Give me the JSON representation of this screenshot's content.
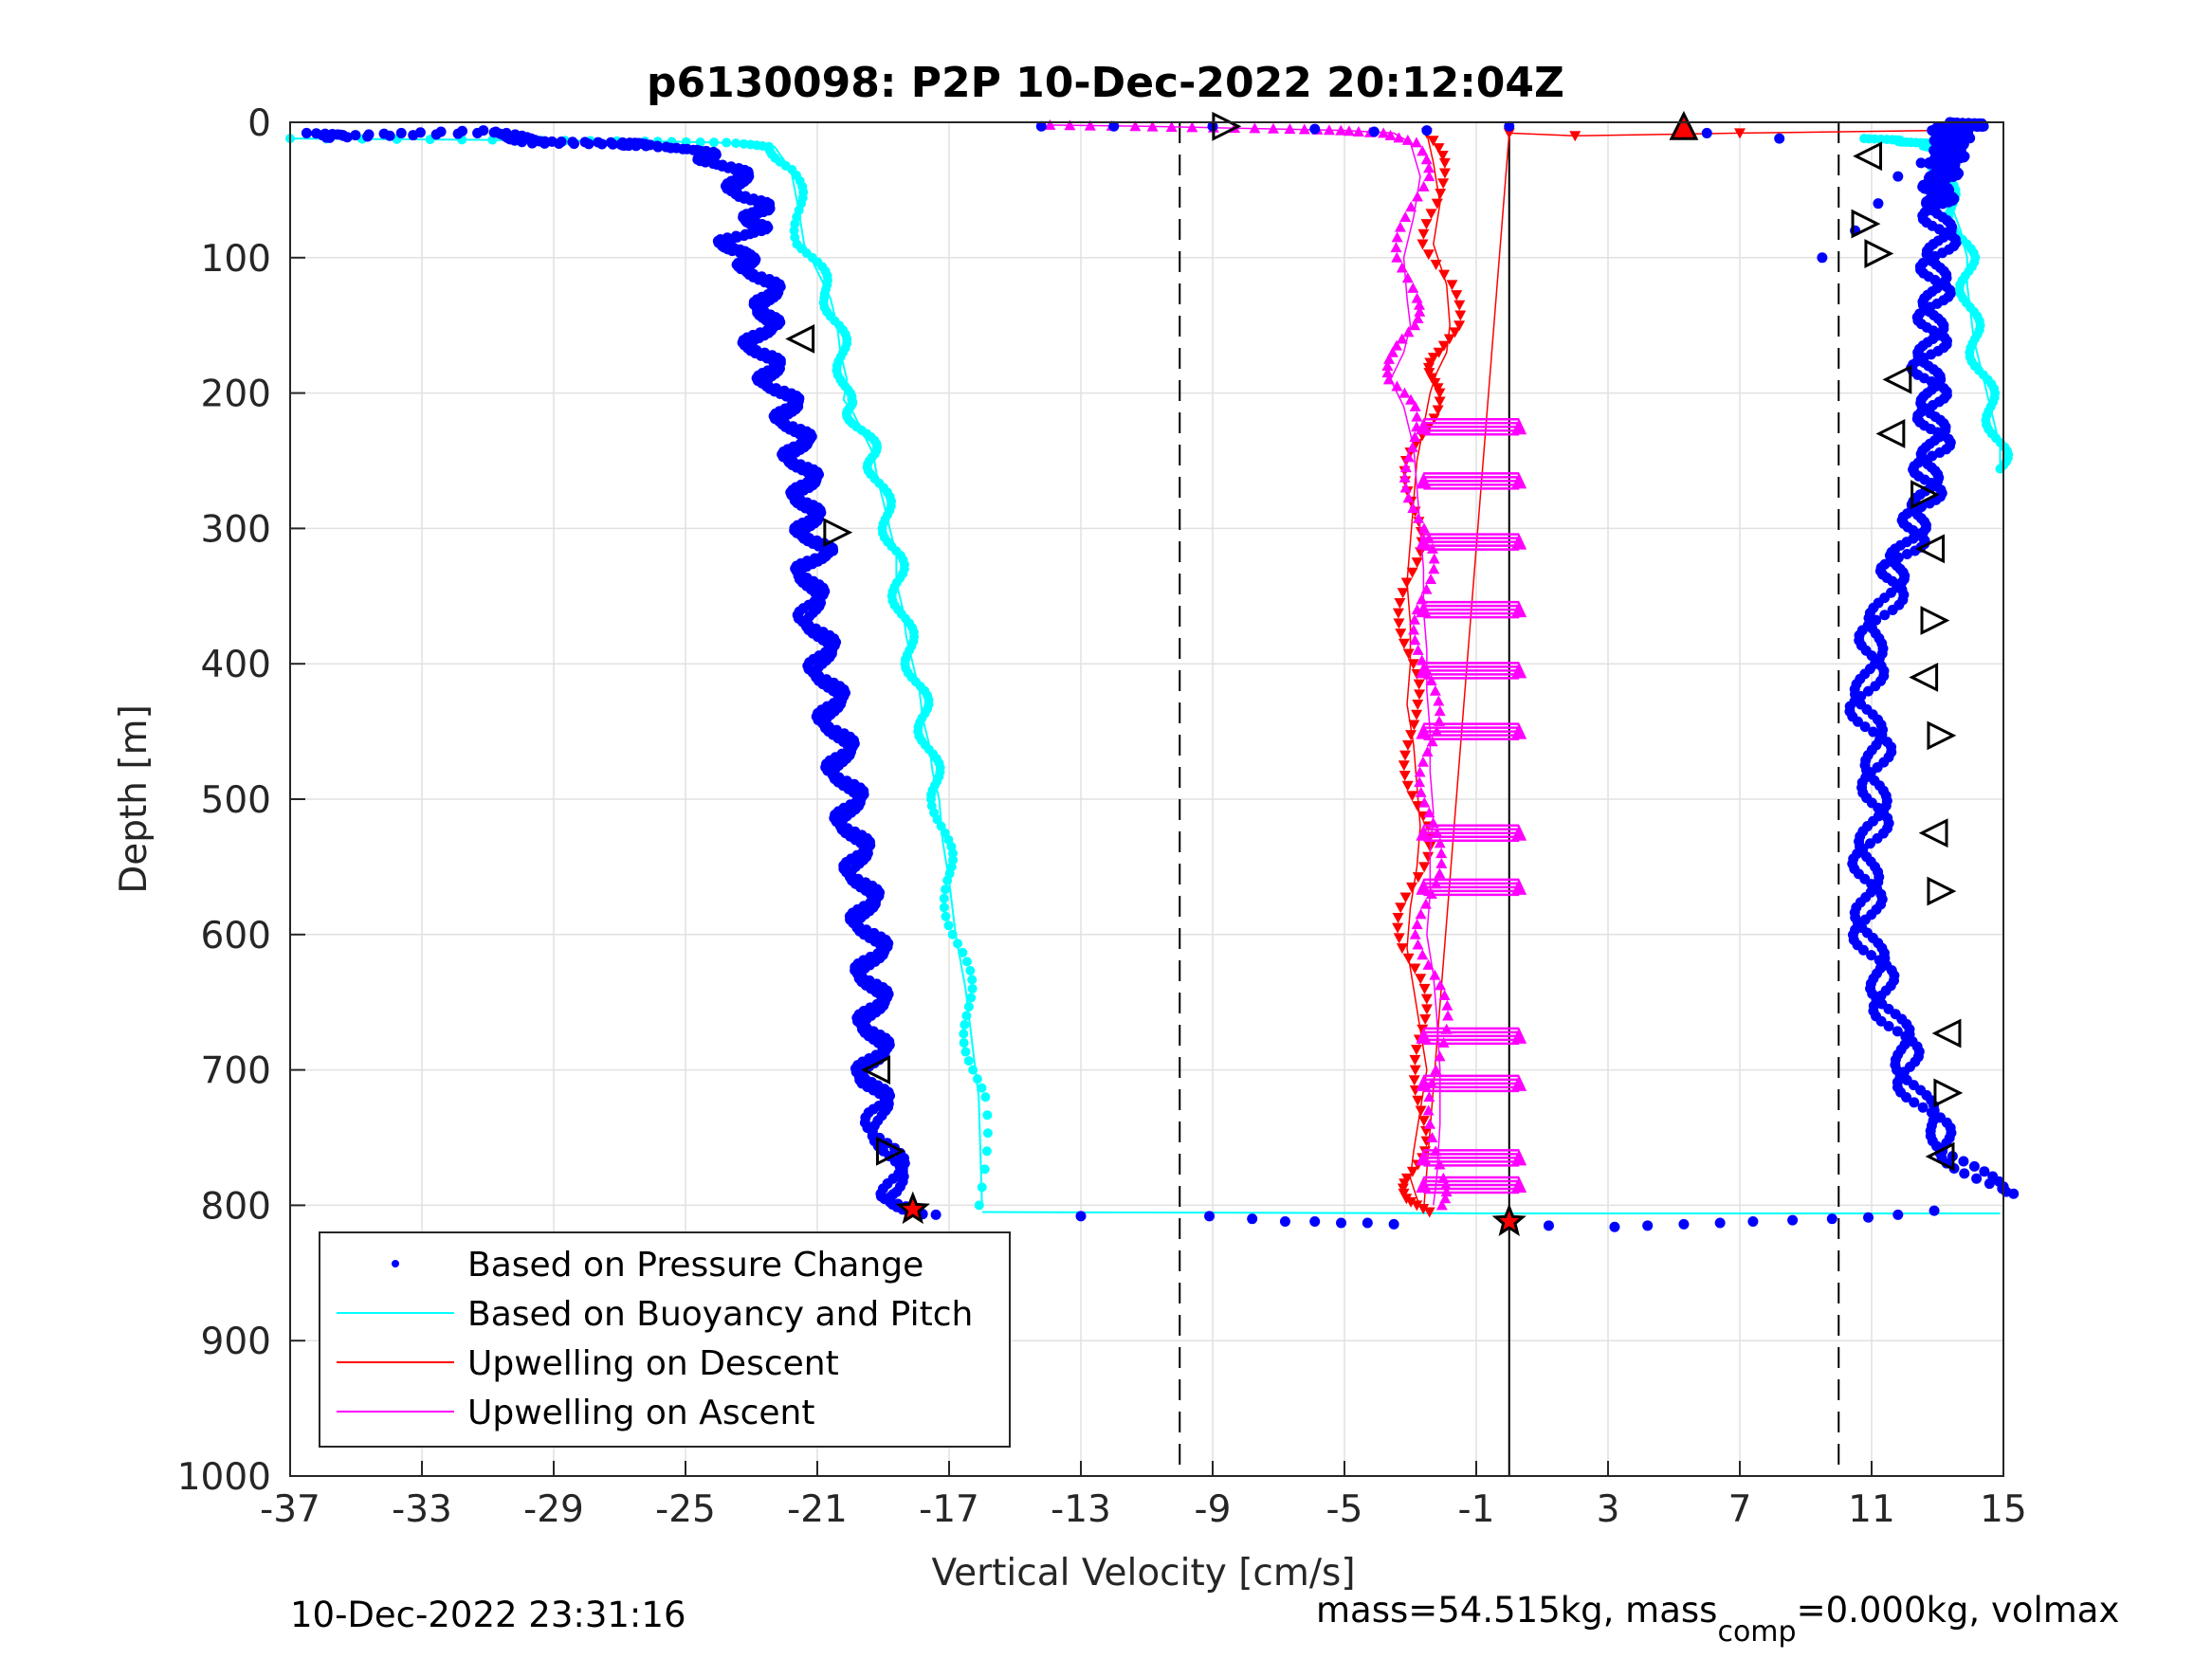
{
  "chart_data": {
    "type": "scatter",
    "title": "p6130098: P2P 10-Dec-2022 20:12:04Z",
    "xlabel": "Vertical Velocity [cm/s]",
    "ylabel": "Depth [m]",
    "xlim": [
      -37,
      15
    ],
    "ylim": [
      0,
      1000
    ],
    "y_reversed": true,
    "grid": true,
    "x_ticks": [
      "-37",
      "-33",
      "-29",
      "-25",
      "-21",
      "-17",
      "-13",
      "-9",
      "-5",
      "-1",
      "3",
      "7",
      "11",
      "15"
    ],
    "y_ticks": [
      "0",
      "100",
      "200",
      "300",
      "400",
      "500",
      "600",
      "700",
      "800",
      "900",
      "1000"
    ],
    "legend_position": "bottom-left",
    "reference_lines": [
      {
        "style": "dashed",
        "x": -10
      },
      {
        "style": "solid",
        "x": 0
      },
      {
        "style": "dashed",
        "x": 10
      }
    ],
    "series": [
      {
        "name": "Based on Pressure Change",
        "color": "#0000ff",
        "marker": "dot",
        "descent": {
          "x": [
            -36.5,
            -35.3,
            -31.3,
            -29.2,
            -27.2,
            -25.9,
            -24.5,
            -23.8,
            -23.4,
            -23.1,
            -22.7,
            -22.9,
            -23.5,
            -23.6,
            -22.9,
            -22.6,
            -22.4,
            -22.7,
            -22.8,
            -22.5,
            -22.2,
            -21.9,
            -21.7,
            -21.6,
            -21.5,
            -21.3,
            -21.4,
            -21.2,
            -21.0,
            -21.2,
            -21.3,
            -21.0,
            -20.9,
            -20.7,
            -20.6,
            -20.4,
            -20.3,
            -20.1,
            -20.0,
            -19.9,
            -19.7,
            -19.6,
            -19.5,
            -19.3,
            -19.4,
            -19.3,
            -19.3,
            -19.3,
            -19.4,
            -19.1,
            -18.9,
            -18.6,
            -18.3
          ],
          "y": [
            8,
            10,
            6,
            14,
            15,
            16,
            22,
            30,
            40,
            55,
            65,
            75,
            85,
            95,
            105,
            120,
            135,
            150,
            165,
            180,
            195,
            210,
            225,
            240,
            255,
            270,
            285,
            300,
            315,
            330,
            350,
            370,
            390,
            410,
            430,
            450,
            470,
            490,
            510,
            530,
            550,
            570,
            590,
            610,
            630,
            650,
            670,
            690,
            710,
            730,
            760,
            790,
            805
          ]
        },
        "bottom": {
          "x": [
            -17.4,
            -13.0,
            -9.1,
            -7.8,
            -6.8,
            -5.9,
            -5.1,
            -4.3,
            -3.5,
            1.2,
            3.2,
            4.2,
            5.3,
            6.4,
            7.4,
            8.6,
            9.8,
            10.9,
            11.8,
            12.9
          ],
          "y": [
            807,
            808,
            808,
            810,
            812,
            812,
            813,
            813,
            814,
            815,
            816,
            815,
            814,
            813,
            812,
            811,
            810,
            809,
            807,
            804
          ]
        },
        "ascent": {
          "x": [
            14.9,
            13.4,
            12.6,
            12.1,
            11.8,
            11.3,
            11.0,
            10.8,
            10.9,
            11.0,
            11.2,
            11.1,
            10.8,
            10.9,
            11.2,
            11.6,
            11.9,
            12.3,
            12.6,
            12.7,
            12.9,
            12.9,
            12.8,
            12.7,
            12.8,
            12.9,
            12.9,
            13.0,
            13.1,
            13.0,
            13.0,
            13.1,
            13.2,
            13.3,
            13.4,
            13.3,
            13.4,
            13.5,
            13.5,
            13.4,
            13.3,
            13.5,
            13.8,
            14.0,
            13.7,
            13.3,
            12.5,
            11.8,
            11.2,
            10.5,
            9.5,
            8.2,
            6.0,
            0.0,
            -2.5,
            -4.1,
            -5.9,
            -9.0,
            -12.0,
            -14.2
          ],
          "y": [
            790,
            760,
            730,
            700,
            670,
            640,
            610,
            580,
            550,
            520,
            490,
            460,
            430,
            400,
            370,
            340,
            320,
            300,
            280,
            260,
            240,
            220,
            200,
            180,
            160,
            140,
            120,
            100,
            80,
            60,
            50,
            40,
            30,
            25,
            20,
            15,
            12,
            10,
            8,
            6,
            4,
            3,
            2,
            1,
            0,
            20,
            30,
            40,
            60,
            80,
            100,
            12,
            8,
            3,
            6,
            7,
            5,
            3,
            3,
            3
          ]
        }
      },
      {
        "name": "Based on Buoyancy and Pitch",
        "color": "#00ffff",
        "marker": "line-circle",
        "descent": {
          "x": [
            -37,
            -31,
            -26,
            -24,
            -22.3,
            -21.8,
            -21.6,
            -21.4,
            -21.0,
            -20.6,
            -20.4,
            -20.3,
            -20.1,
            -20.2,
            -19.9,
            -19.6,
            -19.3,
            -19.2,
            -19.0,
            -18.8,
            -18.6,
            -18.6,
            -18.4,
            -18.3,
            -18.1,
            -17.9,
            -17.8,
            -17.6,
            -17.5,
            -17.3,
            -17.2,
            -17.0,
            -16.8,
            -16.5,
            -16.3,
            -16.1,
            -16.0
          ],
          "y": [
            12,
            13,
            14,
            15,
            18,
            35,
            60,
            90,
            110,
            130,
            150,
            170,
            190,
            205,
            215,
            230,
            245,
            260,
            280,
            300,
            320,
            340,
            360,
            380,
            400,
            420,
            440,
            460,
            480,
            500,
            530,
            560,
            600,
            640,
            680,
            720,
            800
          ]
        },
        "bottom": {
          "x": [
            -16.0,
            0,
            14.9
          ],
          "y": [
            805,
            806,
            806
          ]
        },
        "ascent": {
          "x": [
            14.9,
            14.9,
            14.7,
            14.5,
            14.3,
            14.1,
            14.0,
            13.9,
            13.9,
            13.7,
            13.4,
            13.2,
            13.0,
            13.0,
            12.9,
            12.6,
            12.3,
            12.0,
            11.5,
            11.0
          ],
          "y": [
            256,
            240,
            220,
            200,
            180,
            160,
            140,
            120,
            100,
            80,
            60,
            40,
            30,
            20,
            18,
            16,
            15,
            14,
            13,
            12
          ]
        }
      },
      {
        "name": "Upwelling on Descent",
        "color": "#ff0000",
        "marker": "triangle-down",
        "x": [
          -2.5,
          -2.3,
          -2.1,
          -2.3,
          -1.9,
          -1.8,
          -1.9,
          -2.2,
          -2.4,
          -2.6,
          -2.8,
          -2.9,
          -3.0,
          -3.1,
          -3.0,
          -3.0,
          -3.1,
          -2.9,
          -2.8,
          -2.7,
          -2.8,
          -3.0,
          -3.1,
          -2.9,
          -2.7,
          -2.5,
          -2.7,
          -2.9,
          -3.0,
          -2.8,
          -2.6,
          0.0,
          2.0,
          7.0,
          13.0
        ],
        "y": [
          8,
          30,
          60,
          90,
          120,
          150,
          170,
          185,
          200,
          225,
          250,
          280,
          310,
          340,
          370,
          400,
          430,
          460,
          490,
          520,
          550,
          580,
          610,
          640,
          670,
          700,
          730,
          760,
          780,
          795,
          805,
          8,
          10,
          8,
          6
        ]
      },
      {
        "name": "Upwelling on Ascent",
        "color": "#ff00ff",
        "marker": "triangle-up",
        "x": [
          -14,
          -11,
          -9,
          -7,
          -5,
          -3.5,
          -3,
          -2.7,
          -2.9,
          -3.2,
          -3.1,
          -3.0,
          -3.2,
          -3.6,
          -3.2,
          -2.9,
          -2.8,
          -2.7,
          -2.6,
          -2.6,
          -2.5,
          -2.5,
          -2.4,
          -2.4,
          -2.3,
          -2.4,
          -2.4,
          -2.5,
          -2.3,
          -2.2,
          -2.1,
          -2.1,
          -2.2,
          -2.3
        ],
        "y": [
          2,
          3,
          4,
          5,
          6,
          8,
          15,
          40,
          70,
          100,
          130,
          150,
          170,
          190,
          210,
          240,
          270,
          300,
          330,
          360,
          390,
          420,
          450,
          480,
          510,
          540,
          570,
          600,
          630,
          660,
          700,
          740,
          780,
          800
        ],
        "spikes_depth": [
          225,
          265,
          310,
          360,
          405,
          450,
          525,
          565,
          675,
          710,
          765,
          785
        ],
        "spike_x_end": 0.3
      }
    ],
    "markers_black_triangles": {
      "descent": [
        {
          "x": -21.5,
          "y": 160,
          "dir": "left"
        },
        {
          "x": -20.4,
          "y": 303,
          "dir": "right"
        },
        {
          "x": -19.2,
          "y": 700,
          "dir": "left"
        },
        {
          "x": -18.8,
          "y": 760,
          "dir": "right"
        },
        {
          "x": -8.6,
          "y": 3,
          "dir": "right"
        }
      ],
      "ascent": [
        {
          "x": 10.9,
          "y": 25,
          "dir": "left"
        },
        {
          "x": 10.8,
          "y": 75,
          "dir": "right"
        },
        {
          "x": 11.2,
          "y": 97,
          "dir": "right"
        },
        {
          "x": 11.8,
          "y": 190,
          "dir": "left"
        },
        {
          "x": 11.6,
          "y": 230,
          "dir": "left"
        },
        {
          "x": 12.6,
          "y": 275,
          "dir": "right"
        },
        {
          "x": 12.8,
          "y": 315,
          "dir": "left"
        },
        {
          "x": 12.9,
          "y": 368,
          "dir": "right"
        },
        {
          "x": 12.6,
          "y": 410,
          "dir": "left"
        },
        {
          "x": 13.1,
          "y": 453,
          "dir": "right"
        },
        {
          "x": 12.9,
          "y": 525,
          "dir": "left"
        },
        {
          "x": 13.1,
          "y": 568,
          "dir": "right"
        },
        {
          "x": 13.3,
          "y": 673,
          "dir": "left"
        },
        {
          "x": 13.3,
          "y": 717,
          "dir": "right"
        },
        {
          "x": 13.1,
          "y": 764,
          "dir": "left"
        }
      ],
      "special": [
        {
          "x": -18.1,
          "y": 803,
          "fill": "#ff0000",
          "dir": "star"
        },
        {
          "x": 5.3,
          "y": 3,
          "fill": "#ff0000",
          "dir": "up"
        },
        {
          "x": 0.0,
          "y": 812,
          "fill": "#ff0000",
          "dir": "star"
        }
      ]
    }
  },
  "footer": {
    "timestamp": "10-Dec-2022 23:31:16",
    "mass_text_pre": "mass=54.515kg, mass",
    "mass_sub": "comp",
    "mass_text_post": "=0.000kg, volmax"
  }
}
